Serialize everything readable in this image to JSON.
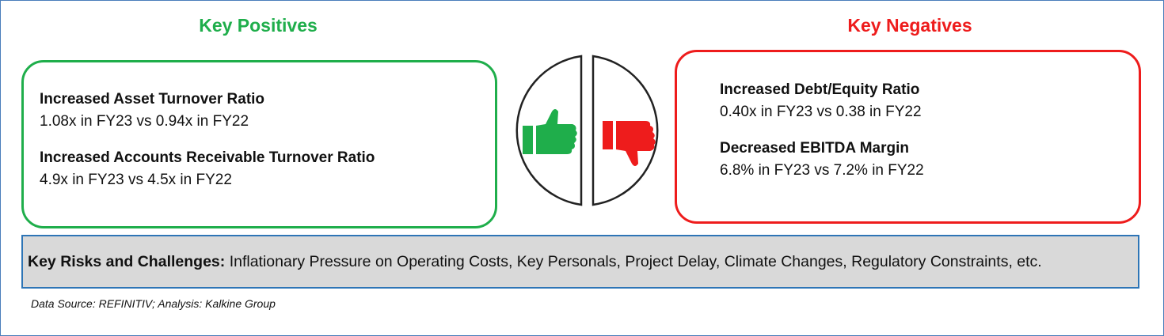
{
  "positives": {
    "title": "Key Positives",
    "items": [
      {
        "heading": "Increased Asset Turnover Ratio",
        "detail": "1.08x in FY23 vs 0.94x in FY22"
      },
      {
        "heading": "Increased Accounts Receivable Turnover Ratio",
        "detail": "4.9x in FY23 vs 4.5x in FY22"
      }
    ]
  },
  "negatives": {
    "title": "Key Negatives",
    "items": [
      {
        "heading": "Increased Debt/Equity Ratio",
        "detail": "0.40x in FY23 vs 0.38 in FY22"
      },
      {
        "heading": "Decreased EBITDA Margin",
        "detail": "6.8% in FY23 vs 7.2% in FY22"
      }
    ]
  },
  "risks": {
    "label": "Key Risks and Challenges:",
    "text": "Inflationary Pressure on Operating Costs, Key Personals, Project Delay, Climate Changes, Regulatory Constraints, etc."
  },
  "source": "Data Source: REFINITIV; Analysis: Kalkine Group"
}
